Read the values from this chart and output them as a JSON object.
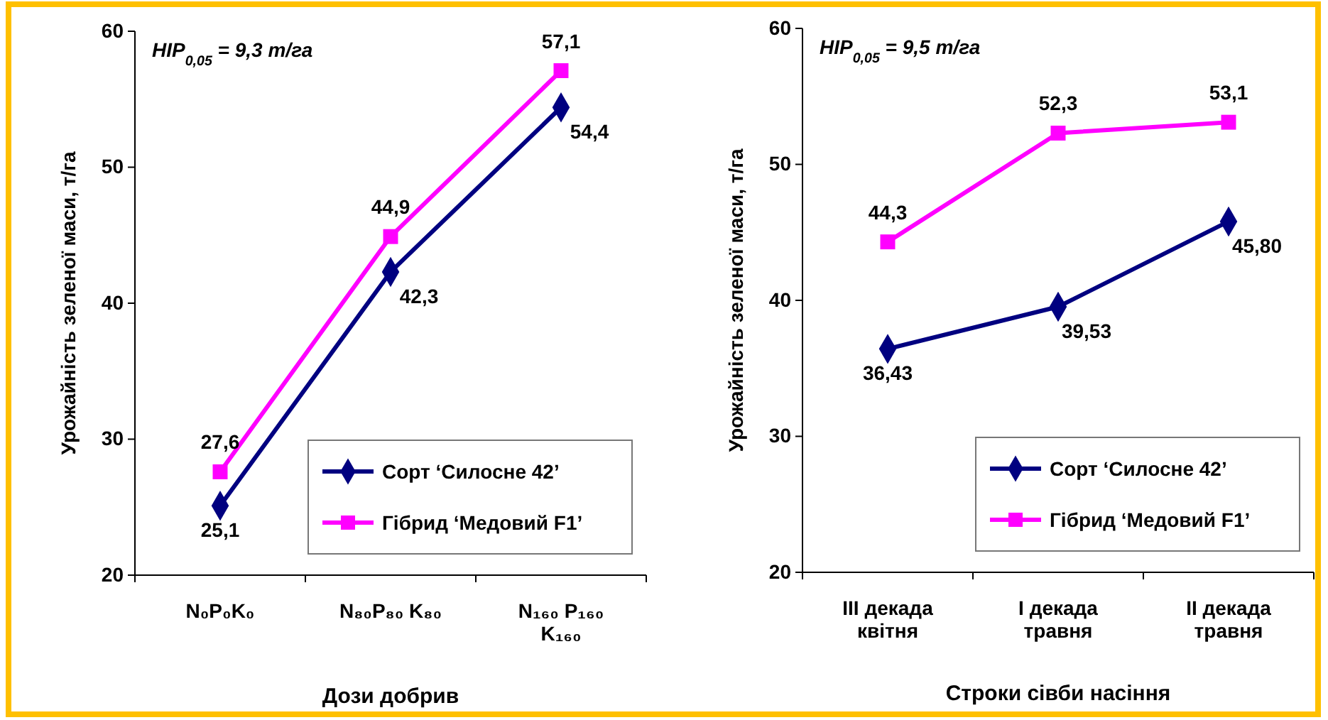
{
  "chart_data": [
    {
      "type": "line",
      "xlabel": "Дози добрив",
      "ylabel": "Урожайність зеленої маси, т/га",
      "categories": [
        "N₀P₀K₀",
        "N₈₀P₈₀ K₈₀",
        "N₁₆₀ P₁₆₀ K₁₆₀"
      ],
      "series": [
        {
          "name": "Сорт ‘Силосне 42’",
          "color": "#000080",
          "marker": "diamond",
          "values": [
            25.1,
            42.3,
            54.4
          ],
          "value_labels": [
            "25,1",
            "42,3",
            "54,4"
          ]
        },
        {
          "name": "Гібрид ‘Медовий F1’",
          "color": "#ff00ff",
          "marker": "square",
          "values": [
            27.6,
            44.9,
            57.1
          ],
          "value_labels": [
            "27,6",
            "44,9",
            "57,1"
          ]
        }
      ],
      "ylim": [
        20,
        60
      ],
      "yticks": [
        20,
        30,
        40,
        50,
        60
      ],
      "grid": false,
      "legend": "bottom right",
      "annotations": [
        "HIP$_{0,05}$ = 9,3 т/га"
      ]
    },
    {
      "type": "line",
      "xlabel": "Строки сівби насіння",
      "ylabel": "Урожайність зеленої маси, т/га",
      "categories": [
        "III декада квітня",
        "I декада травня",
        "II декада травня"
      ],
      "series": [
        {
          "name": "Сорт ‘Силосне 42’",
          "color": "#000080",
          "marker": "diamond",
          "values": [
            36.43,
            39.53,
            45.8
          ],
          "value_labels": [
            "36,43",
            "39,53",
            "45,80"
          ]
        },
        {
          "name": "Гібрид ‘Медовий F1’",
          "color": "#ff00ff",
          "marker": "square",
          "values": [
            44.3,
            52.3,
            53.1
          ],
          "value_labels": [
            "44,3",
            "52,3",
            "53,1"
          ]
        }
      ],
      "ylim": [
        20,
        60
      ],
      "yticks": [
        20,
        30,
        40,
        50,
        60
      ],
      "grid": false,
      "legend": "bottom right",
      "annotations": [
        "HIP$_{0,05}$ = 9,5 т/га"
      ]
    }
  ]
}
